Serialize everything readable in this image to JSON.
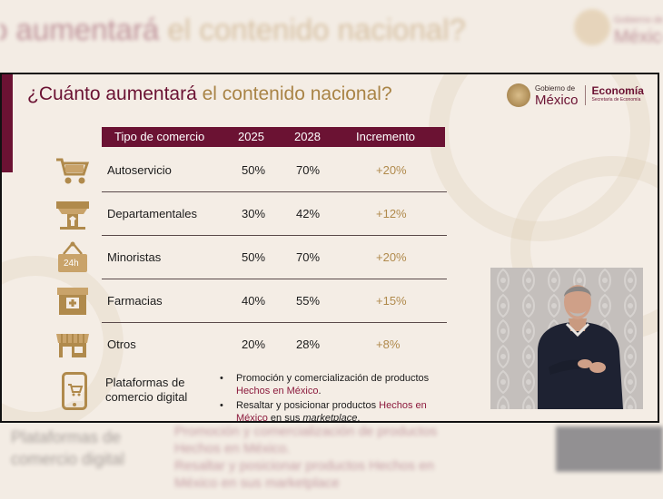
{
  "background": {
    "title_part1": "o aumentará",
    "title_part2": "el contenido nacional?",
    "logo_text_line1": "Gobierno de",
    "logo_text_line2": "México",
    "platforms_label_line1": "Plataformas de",
    "platforms_label_line2": "comercio digital",
    "bullet1_line1": "Promoción y comercialización de productos",
    "bullet1_line2": "Hechos en México.",
    "bullet2_line1": "Resaltar y posicionar productos Hechos en",
    "bullet2_line2": "México en sus marketplace"
  },
  "slide": {
    "title_part1": "¿Cuánto aumentará",
    "title_part2": "el contenido nacional?",
    "gov_small": "Gobierno de",
    "gov_big": "México",
    "economy": "Economía",
    "economy_sub": "Secretaría de Economía"
  },
  "table": {
    "headers": [
      "Tipo de comercio",
      "2025",
      "2028",
      "Incremento"
    ],
    "rows": [
      {
        "icon": "shopping-cart-icon",
        "type": "Autoservicio",
        "y2025": "50%",
        "y2028": "70%",
        "increase": "+20%"
      },
      {
        "icon": "department-store-icon",
        "type": "Departamentales",
        "y2025": "30%",
        "y2028": "42%",
        "increase": "+12%"
      },
      {
        "icon": "24h-store-sign-icon",
        "type": "Minoristas",
        "y2025": "50%",
        "y2028": "70%",
        "increase": "+20%",
        "icon_text": "24h"
      },
      {
        "icon": "pharmacy-icon",
        "type": "Farmacias",
        "y2025": "40%",
        "y2028": "55%",
        "increase": "+15%"
      },
      {
        "icon": "shop-awning-icon",
        "type": "Otros",
        "y2025": "20%",
        "y2028": "28%",
        "increase": "+8%"
      }
    ]
  },
  "platforms": {
    "icon": "smartphone-cart-icon",
    "label_line1": "Plataformas de",
    "label_line2": "comercio digital",
    "bullet1_text": "Promoción y comercialización de productos",
    "bullet1_highlight": "Hechos en México",
    "bullet1_end": ".",
    "bullet2_text": "Resaltar y posicionar productos",
    "bullet2_highlight1": "Hechos en",
    "bullet2_highlight2": "México",
    "bullet2_mid": "en sus",
    "bullet2_italic": "marketplace",
    "bullet2_end": "."
  },
  "colors": {
    "maroon": "#6b1233",
    "gold": "#b08a4c",
    "background": "#f3ece4"
  }
}
